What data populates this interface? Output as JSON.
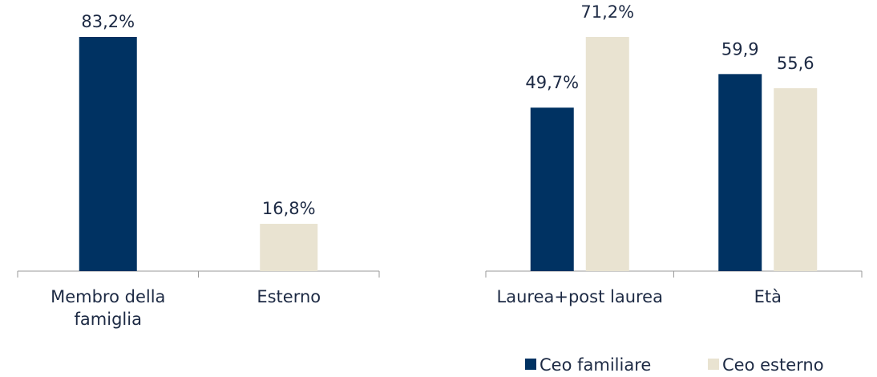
{
  "chart_data": [
    {
      "type": "bar",
      "categories": [
        "Membro della famiglia",
        "Esterno"
      ],
      "values": [
        83.2,
        16.8
      ],
      "value_labels": [
        "83,2%",
        "16,8%"
      ],
      "colors": [
        "#003262",
        "#e9e3d1"
      ]
    },
    {
      "type": "grouped-bar",
      "categories": [
        "Laurea+post laurea",
        "Età"
      ],
      "series": [
        {
          "name": "Ceo familiare",
          "color": "#003262",
          "values": [
            49.7,
            59.9
          ],
          "value_labels": [
            "49,7%",
            "59,9"
          ]
        },
        {
          "name": "Ceo esterno",
          "color": "#e9e3d1",
          "values": [
            71.2,
            55.6
          ],
          "value_labels": [
            "71,2%",
            "55,6"
          ]
        }
      ],
      "legend": "bottom"
    }
  ]
}
